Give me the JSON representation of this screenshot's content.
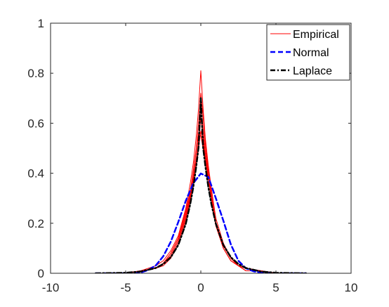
{
  "chart_data": {
    "type": "line",
    "title": "",
    "xlabel": "",
    "ylabel": "",
    "xlim": [
      -10,
      10
    ],
    "ylim": [
      0,
      1
    ],
    "x_ticks": [
      -10,
      -5,
      0,
      5,
      10
    ],
    "y_ticks": [
      0,
      0.2,
      0.4,
      0.6,
      0.8,
      1
    ],
    "x_tick_labels": [
      "-10",
      "-5",
      "0",
      "5",
      "10"
    ],
    "y_tick_labels": [
      "0",
      "0.2",
      "0.4",
      "0.6",
      "0.8",
      "1"
    ],
    "grid": false,
    "legend_position": "top-right",
    "legend": [
      {
        "label": "Empirical",
        "color": "#ff0000",
        "style": "solid"
      },
      {
        "label": "Normal",
        "color": "#0000ff",
        "style": "dashed"
      },
      {
        "label": "Laplace",
        "color": "#000000",
        "style": "dash-dot"
      }
    ],
    "series": [
      {
        "name": "Empirical",
        "color": "#ff0000",
        "style": "solid",
        "curves": [
          {
            "x": [
              -7,
              -5,
              -4,
              -3,
              -2.5,
              -2,
              -1.5,
              -1,
              -0.7,
              -0.5,
              -0.3,
              -0.15,
              0,
              0.15,
              0.3,
              0.5,
              0.7,
              1,
              1.5,
              2,
              2.5,
              3,
              4,
              5,
              7
            ],
            "y": [
              0,
              0,
              0.01,
              0.03,
              0.05,
              0.09,
              0.15,
              0.26,
              0.36,
              0.44,
              0.55,
              0.66,
              0.81,
              0.66,
              0.54,
              0.43,
              0.34,
              0.22,
              0.12,
              0.06,
              0.03,
              0.02,
              0.01,
              0,
              0
            ]
          },
          {
            "x": [
              -7,
              -5,
              -4,
              -3,
              -2.5,
              -2,
              -1.5,
              -1,
              -0.7,
              -0.5,
              -0.3,
              -0.15,
              0,
              0.15,
              0.3,
              0.5,
              0.7,
              1,
              1.5,
              2,
              2.5,
              3,
              4,
              5,
              7
            ],
            "y": [
              0,
              0,
              0.01,
              0.02,
              0.04,
              0.08,
              0.14,
              0.25,
              0.33,
              0.41,
              0.5,
              0.6,
              0.72,
              0.63,
              0.52,
              0.41,
              0.32,
              0.2,
              0.11,
              0.06,
              0.03,
              0.02,
              0.01,
              0,
              0
            ]
          },
          {
            "x": [
              -7,
              -5,
              -4,
              -3,
              -2.5,
              -2,
              -1.5,
              -1,
              -0.7,
              -0.5,
              -0.3,
              -0.15,
              0,
              0.15,
              0.3,
              0.5,
              0.7,
              1,
              1.5,
              2,
              2.5,
              3,
              4,
              5,
              7
            ],
            "y": [
              0,
              0,
              0.01,
              0.02,
              0.04,
              0.07,
              0.13,
              0.23,
              0.31,
              0.38,
              0.46,
              0.53,
              0.62,
              0.55,
              0.47,
              0.38,
              0.3,
              0.19,
              0.1,
              0.05,
              0.03,
              0.01,
              0.01,
              0,
              0
            ]
          },
          {
            "x": [
              -7,
              -5,
              -4,
              -3,
              -2.5,
              -2,
              -1.5,
              -1,
              -0.7,
              -0.5,
              -0.3,
              -0.15,
              0,
              0.15,
              0.3,
              0.5,
              0.7,
              1,
              1.5,
              2,
              2.5,
              3,
              4,
              5,
              7
            ],
            "y": [
              0,
              0,
              0.01,
              0.02,
              0.04,
              0.08,
              0.14,
              0.24,
              0.32,
              0.4,
              0.49,
              0.56,
              0.55,
              0.5,
              0.45,
              0.38,
              0.3,
              0.19,
              0.1,
              0.05,
              0.03,
              0.01,
              0.01,
              0,
              0
            ]
          },
          {
            "x": [
              -7,
              -5,
              -4,
              -3,
              -2.5,
              -2,
              -1.5,
              -1,
              -0.7,
              -0.5,
              -0.3,
              -0.15,
              0,
              0.15,
              0.3,
              0.5,
              0.7,
              1,
              1.5,
              2,
              2.5,
              3,
              4,
              5,
              7
            ],
            "y": [
              0,
              0,
              0.01,
              0.02,
              0.04,
              0.07,
              0.13,
              0.22,
              0.3,
              0.37,
              0.45,
              0.52,
              0.68,
              0.58,
              0.49,
              0.4,
              0.31,
              0.2,
              0.1,
              0.05,
              0.03,
              0.01,
              0.01,
              0,
              0
            ]
          },
          {
            "x": [
              -7,
              -5,
              -4,
              -3,
              -2.5,
              -2,
              -1.5,
              -1,
              -0.7,
              -0.5,
              -0.3,
              -0.15,
              0,
              0.15,
              0.3,
              0.5,
              0.7,
              1,
              1.5,
              2,
              2.5,
              3,
              4,
              5,
              7
            ],
            "y": [
              0,
              0,
              0.01,
              0.02,
              0.03,
              0.06,
              0.12,
              0.21,
              0.29,
              0.36,
              0.44,
              0.5,
              0.57,
              0.52,
              0.46,
              0.39,
              0.31,
              0.2,
              0.11,
              0.06,
              0.03,
              0.02,
              0.01,
              0,
              0
            ]
          }
        ]
      },
      {
        "name": "Normal",
        "color": "#0000ff",
        "style": "dashed",
        "x": [
          -7,
          -5,
          -4,
          -3.5,
          -3,
          -2.5,
          -2,
          -1.5,
          -1,
          -0.5,
          0,
          0.5,
          1,
          1.5,
          2,
          2.5,
          3,
          3.5,
          4,
          5,
          7
        ],
        "y": [
          0,
          0,
          0.003,
          0.013,
          0.031,
          0.068,
          0.126,
          0.205,
          0.29,
          0.36,
          0.399,
          0.385,
          0.3,
          0.21,
          0.115,
          0.05,
          0.02,
          0.008,
          0.003,
          0,
          0
        ]
      },
      {
        "name": "Laplace",
        "color": "#000000",
        "style": "dash-dot",
        "x": [
          -7,
          -6,
          -5,
          -4,
          -3,
          -2.5,
          -2,
          -1.5,
          -1,
          -0.7,
          -0.5,
          -0.3,
          -0.15,
          0,
          0.15,
          0.3,
          0.5,
          0.7,
          1,
          1.5,
          2,
          2.5,
          3,
          4,
          5,
          6,
          7
        ],
        "y": [
          0,
          0.001,
          0.002,
          0.007,
          0.021,
          0.037,
          0.064,
          0.113,
          0.198,
          0.278,
          0.345,
          0.43,
          0.505,
          0.7,
          0.505,
          0.43,
          0.345,
          0.278,
          0.198,
          0.113,
          0.064,
          0.037,
          0.021,
          0.007,
          0.002,
          0.001,
          0
        ]
      }
    ]
  }
}
